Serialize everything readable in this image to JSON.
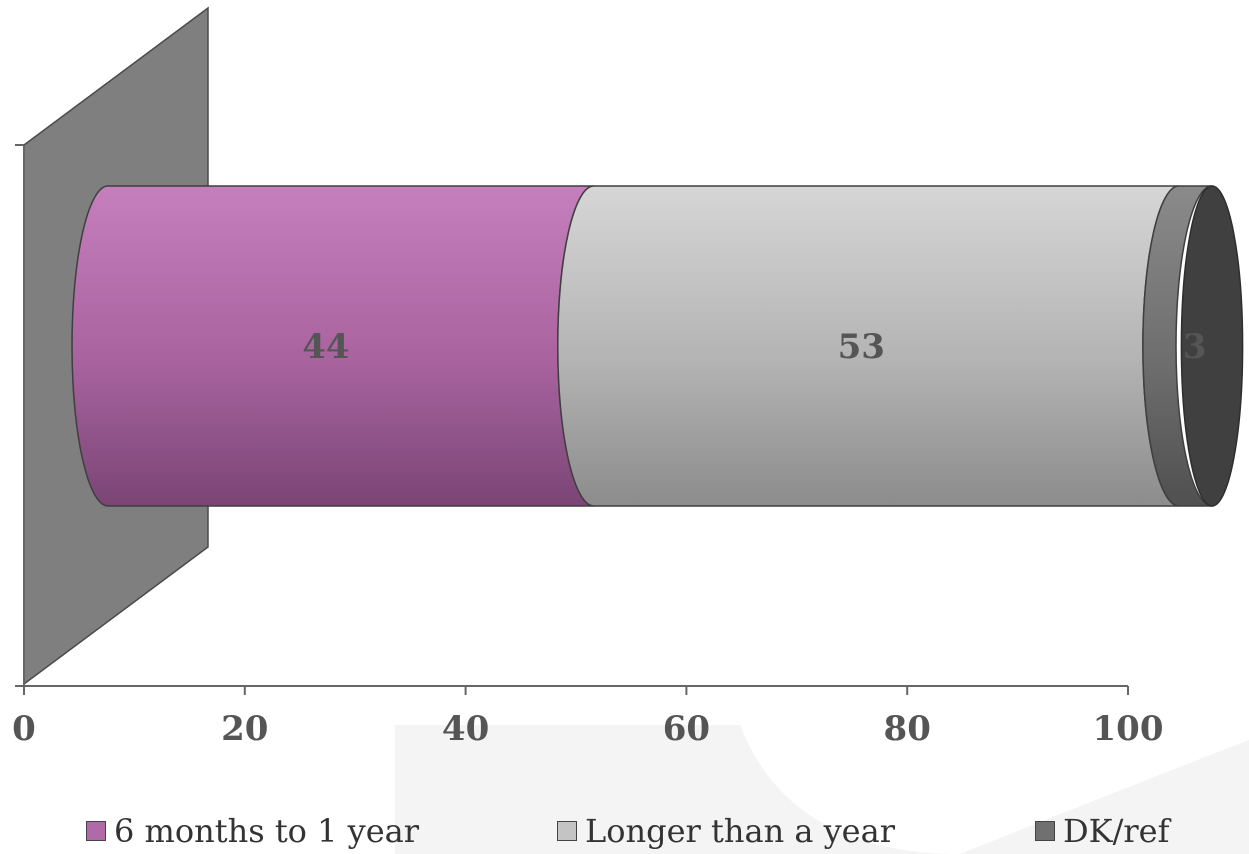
{
  "chart_data": {
    "type": "bar",
    "orientation": "horizontal",
    "stacked": true,
    "style": "3d-cylinder",
    "categories": [
      ""
    ],
    "series": [
      {
        "name": "6 months to 1 year",
        "values": [
          44
        ],
        "color": "#b06aa8",
        "label": "44"
      },
      {
        "name": "Longer than a year",
        "values": [
          53
        ],
        "color": "#c4c4c4",
        "label": "53"
      },
      {
        "name": "DK/ref",
        "values": [
          3
        ],
        "color": "#707070",
        "label": "3"
      }
    ],
    "xlim": [
      0,
      100
    ],
    "x_ticks": [
      "0",
      "20",
      "40",
      "60",
      "80",
      "100"
    ],
    "title": "",
    "xlabel": "",
    "ylabel": "",
    "grid": false,
    "legend_position": "bottom"
  }
}
